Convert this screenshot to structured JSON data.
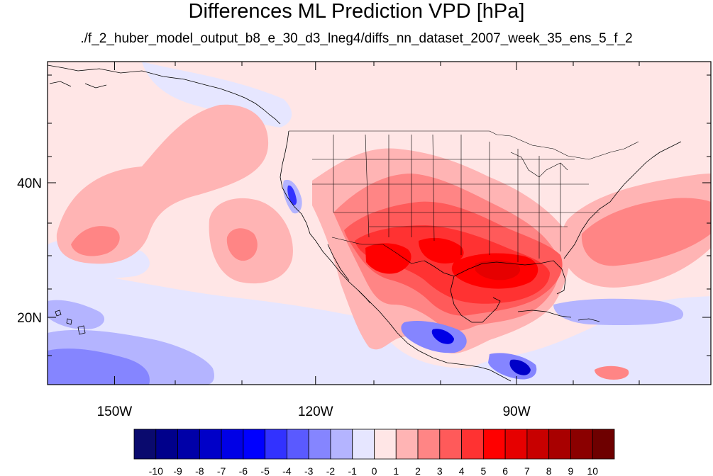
{
  "title": "Differences ML Prediction VPD [hPa]",
  "subtitle": "./f_2_huber_model_output_b8_e_30_d3_lneg4/diffs_nn_dataset_2007_week_35_ens_5_f_2",
  "map": {
    "lon_range": [
      -160,
      -61
    ],
    "lat_range": [
      10,
      58
    ],
    "y_ticks": [
      {
        "label": "40N",
        "lat": 40
      },
      {
        "label": "20N",
        "lat": 20
      }
    ],
    "x_ticks": [
      {
        "label": "150W",
        "lon": -150
      },
      {
        "label": "120W",
        "lon": -120
      },
      {
        "label": "90W",
        "lon": -90
      }
    ]
  },
  "colorbar": {
    "labels": [
      "-10",
      "-9",
      "-8",
      "-7",
      "-6",
      "-5",
      "-4",
      "-3",
      "-2",
      "-1",
      "0",
      "1",
      "2",
      "3",
      "4",
      "5",
      "6",
      "7",
      "8",
      "9",
      "10"
    ],
    "colors": [
      "#0a0a6e",
      "#00008b",
      "#0000a8",
      "#0000c8",
      "#0000e6",
      "#0000ff",
      "#3232ff",
      "#5a5aff",
      "#8585ff",
      "#b4b4ff",
      "#e6e6ff",
      "#ffe6e6",
      "#ffb4b4",
      "#ff8585",
      "#ff5a5a",
      "#ff3232",
      "#ff0000",
      "#e60000",
      "#c80000",
      "#a80000",
      "#8b0000",
      "#6e0000"
    ]
  }
}
